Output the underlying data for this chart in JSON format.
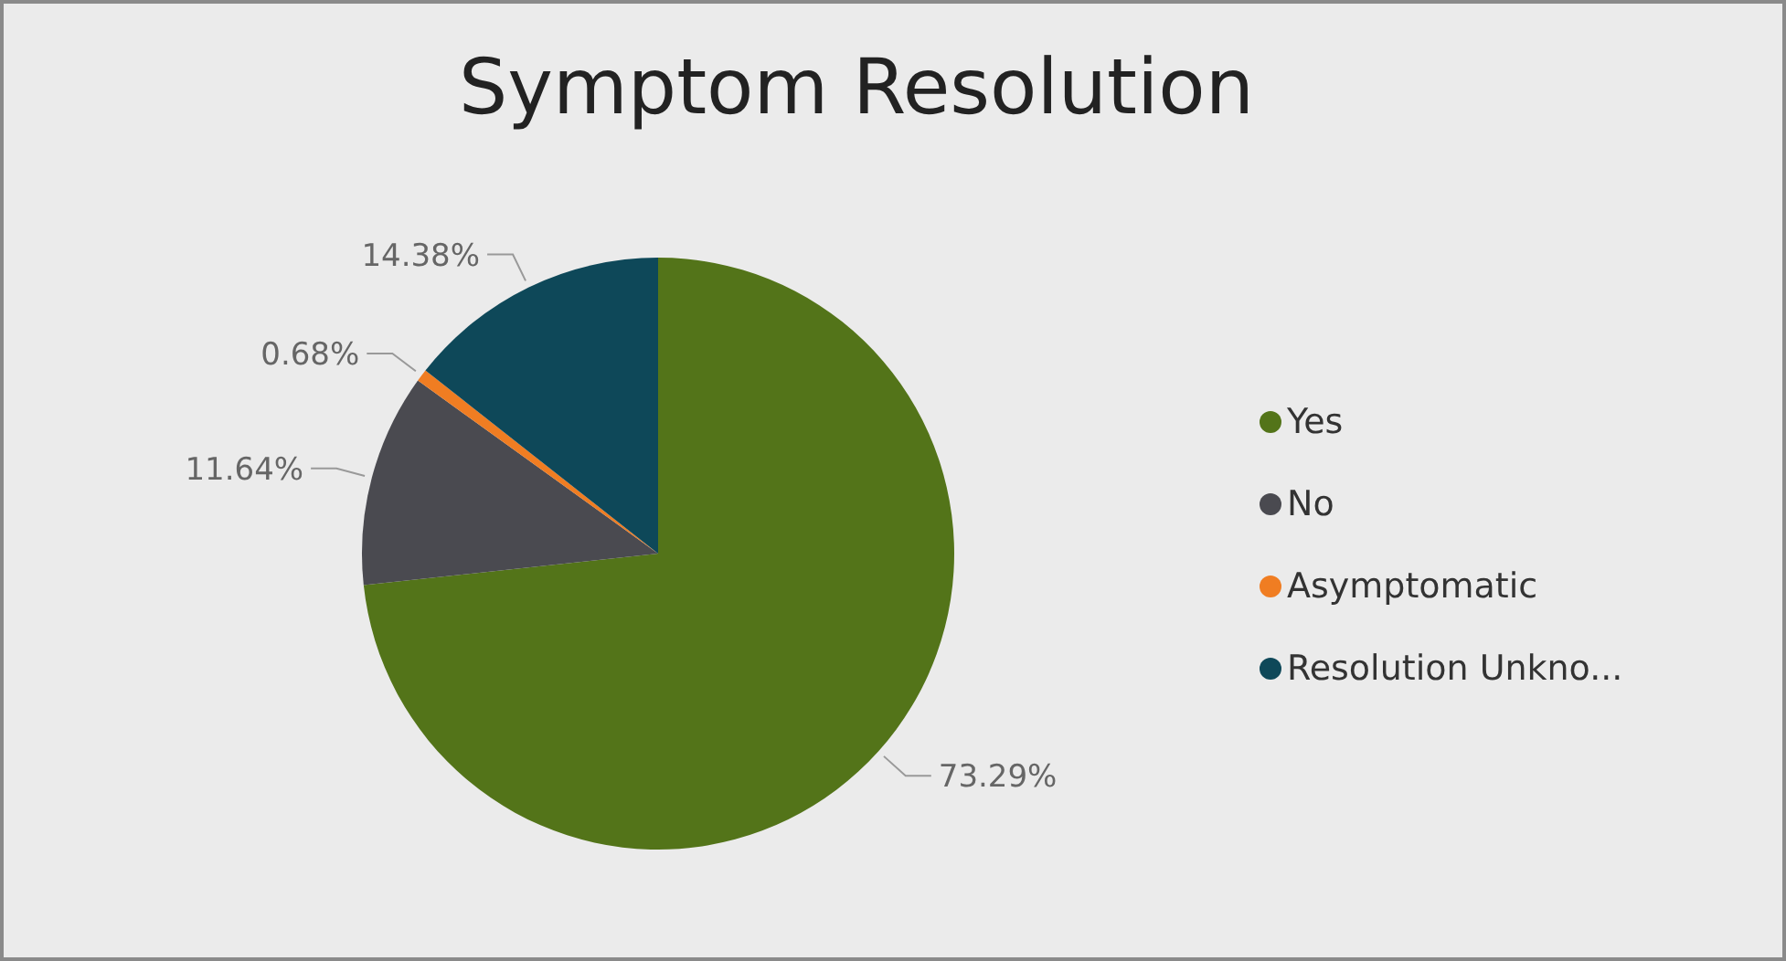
{
  "chart_data": {
    "type": "pie",
    "title": "Symptom Resolution",
    "categories": [
      "Yes",
      "No",
      "Asymptomatic",
      "Resolution Unkno..."
    ],
    "values": [
      73.29,
      11.64,
      0.68,
      14.38
    ],
    "value_labels": [
      "73.29%",
      "11.64%",
      "0.68%",
      "14.38%"
    ],
    "colors": [
      "#537419",
      "#4a4a50",
      "#f07d22",
      "#0e4859"
    ],
    "legend": "right"
  }
}
